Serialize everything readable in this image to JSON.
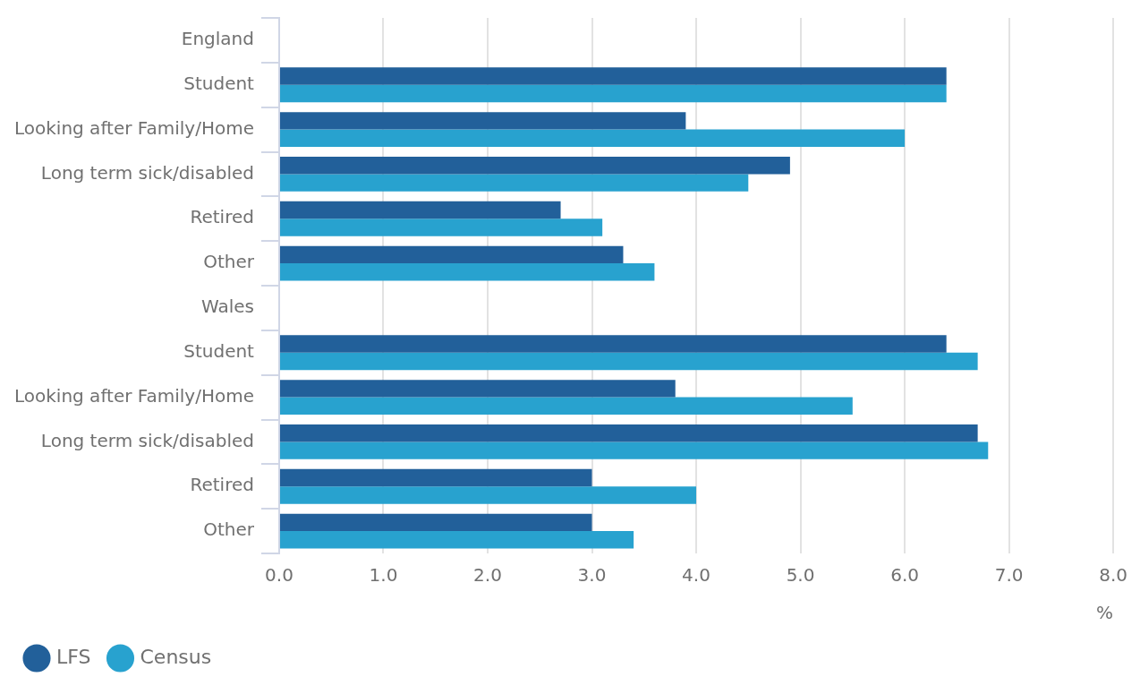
{
  "chart_data": {
    "type": "bar",
    "orientation": "horizontal",
    "xlabel": "%",
    "categories": [
      "England",
      "Student",
      "Looking after Family/Home",
      "Long term sick/disabled",
      "Retired",
      "Other",
      "Wales",
      "Student",
      "Looking after Family/Home",
      "Long term sick/disabled",
      "Retired",
      "Other"
    ],
    "series": [
      {
        "name": "LFS",
        "color": "#22609a",
        "values": [
          null,
          6.4,
          3.9,
          4.9,
          2.7,
          3.3,
          null,
          6.4,
          3.8,
          6.7,
          3.0,
          3.0
        ]
      },
      {
        "name": "Census",
        "color": "#28a2cf",
        "values": [
          null,
          6.4,
          6.0,
          4.5,
          3.1,
          3.6,
          null,
          6.7,
          5.5,
          6.8,
          4.0,
          3.4
        ]
      }
    ],
    "xlim": [
      0,
      8
    ],
    "xticks": [
      {
        "value": 0,
        "label": "0.0"
      },
      {
        "value": 1,
        "label": "1.0"
      },
      {
        "value": 2,
        "label": "2.0"
      },
      {
        "value": 3,
        "label": "3.0"
      },
      {
        "value": 4,
        "label": "4.0"
      },
      {
        "value": 5,
        "label": "5.0"
      },
      {
        "value": 6,
        "label": "6.0"
      },
      {
        "value": 7,
        "label": "7.0"
      },
      {
        "value": 8,
        "label": "8.0"
      }
    ],
    "grid": "x",
    "legend": "bottom left"
  }
}
